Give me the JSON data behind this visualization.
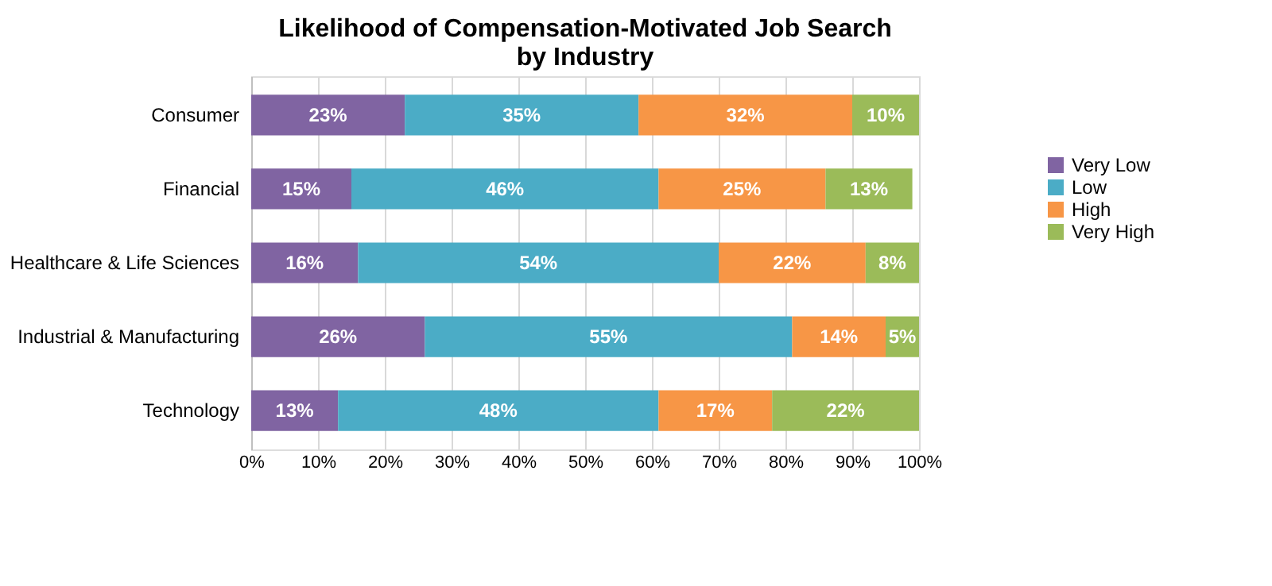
{
  "chart_data": {
    "type": "bar",
    "orientation": "horizontal",
    "stacked": true,
    "title": "Likelihood of Compensation-Motivated Job Search\nby Industry",
    "categories": [
      "Consumer",
      "Financial",
      "Healthcare & Life Sciences",
      "Industrial & Manufacturing",
      "Technology"
    ],
    "series": [
      {
        "name": "Very Low",
        "color": "#8064a2",
        "values": [
          23,
          15,
          16,
          26,
          13
        ],
        "value_labels": [
          "23%",
          "15%",
          "16%",
          "26%",
          "13%"
        ]
      },
      {
        "name": "Low",
        "color": "#4bacc6",
        "values": [
          35,
          46,
          54,
          55,
          48
        ],
        "value_labels": [
          "35%",
          "46%",
          "54%",
          "55%",
          "48%"
        ]
      },
      {
        "name": "High",
        "color": "#f79646",
        "values": [
          32,
          25,
          22,
          14,
          17
        ],
        "value_labels": [
          "32%",
          "25%",
          "22%",
          "14%",
          "17%"
        ]
      },
      {
        "name": "Very High",
        "color": "#9bbb59",
        "values": [
          10,
          13,
          8,
          5,
          22
        ],
        "value_labels": [
          "10%",
          "13%",
          "8%",
          "5%",
          "22%"
        ]
      }
    ],
    "xlim": [
      0,
      100
    ],
    "xticks": [
      {
        "value": 0,
        "label": "0%"
      },
      {
        "value": 10,
        "label": "10%"
      },
      {
        "value": 20,
        "label": "20%"
      },
      {
        "value": 30,
        "label": "30%"
      },
      {
        "value": 40,
        "label": "40%"
      },
      {
        "value": 50,
        "label": "50%"
      },
      {
        "value": 60,
        "label": "60%"
      },
      {
        "value": 70,
        "label": "70%"
      },
      {
        "value": 80,
        "label": "80%"
      },
      {
        "value": 90,
        "label": "90%"
      },
      {
        "value": 100,
        "label": "100%"
      }
    ],
    "grid": "x",
    "legend": "right"
  }
}
